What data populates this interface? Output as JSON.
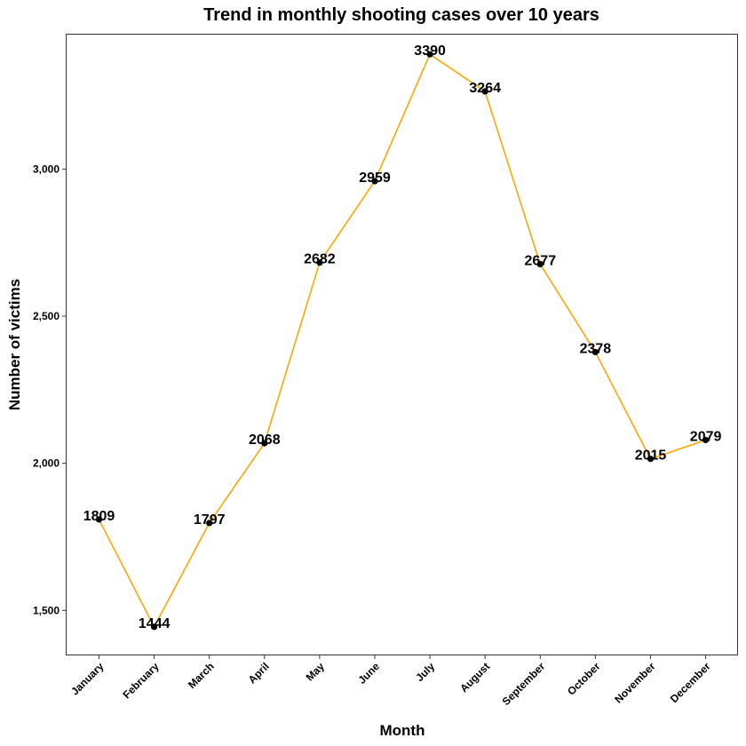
{
  "chart_data": {
    "type": "line",
    "title": "Trend in monthly shooting cases over 10 years",
    "xlabel": "Month",
    "ylabel": "Number of victims",
    "categories": [
      "January",
      "February",
      "March",
      "April",
      "May",
      "June",
      "July",
      "August",
      "September",
      "October",
      "November",
      "December"
    ],
    "series": [
      {
        "values": [
          1809,
          1444,
          1797,
          2068,
          2682,
          2959,
          3390,
          3264,
          2677,
          2378,
          2015,
          2079
        ]
      }
    ],
    "yticks": [
      1500,
      2000,
      2500,
      3000
    ],
    "ytick_labels": [
      "1,500",
      "2,000",
      "2,500",
      "3,000"
    ],
    "ylim": [
      1350,
      3460
    ],
    "grid": false,
    "legend": "none",
    "colors": {
      "line": "#FFA500",
      "point": "#000000",
      "panel_border": "#333333"
    }
  }
}
